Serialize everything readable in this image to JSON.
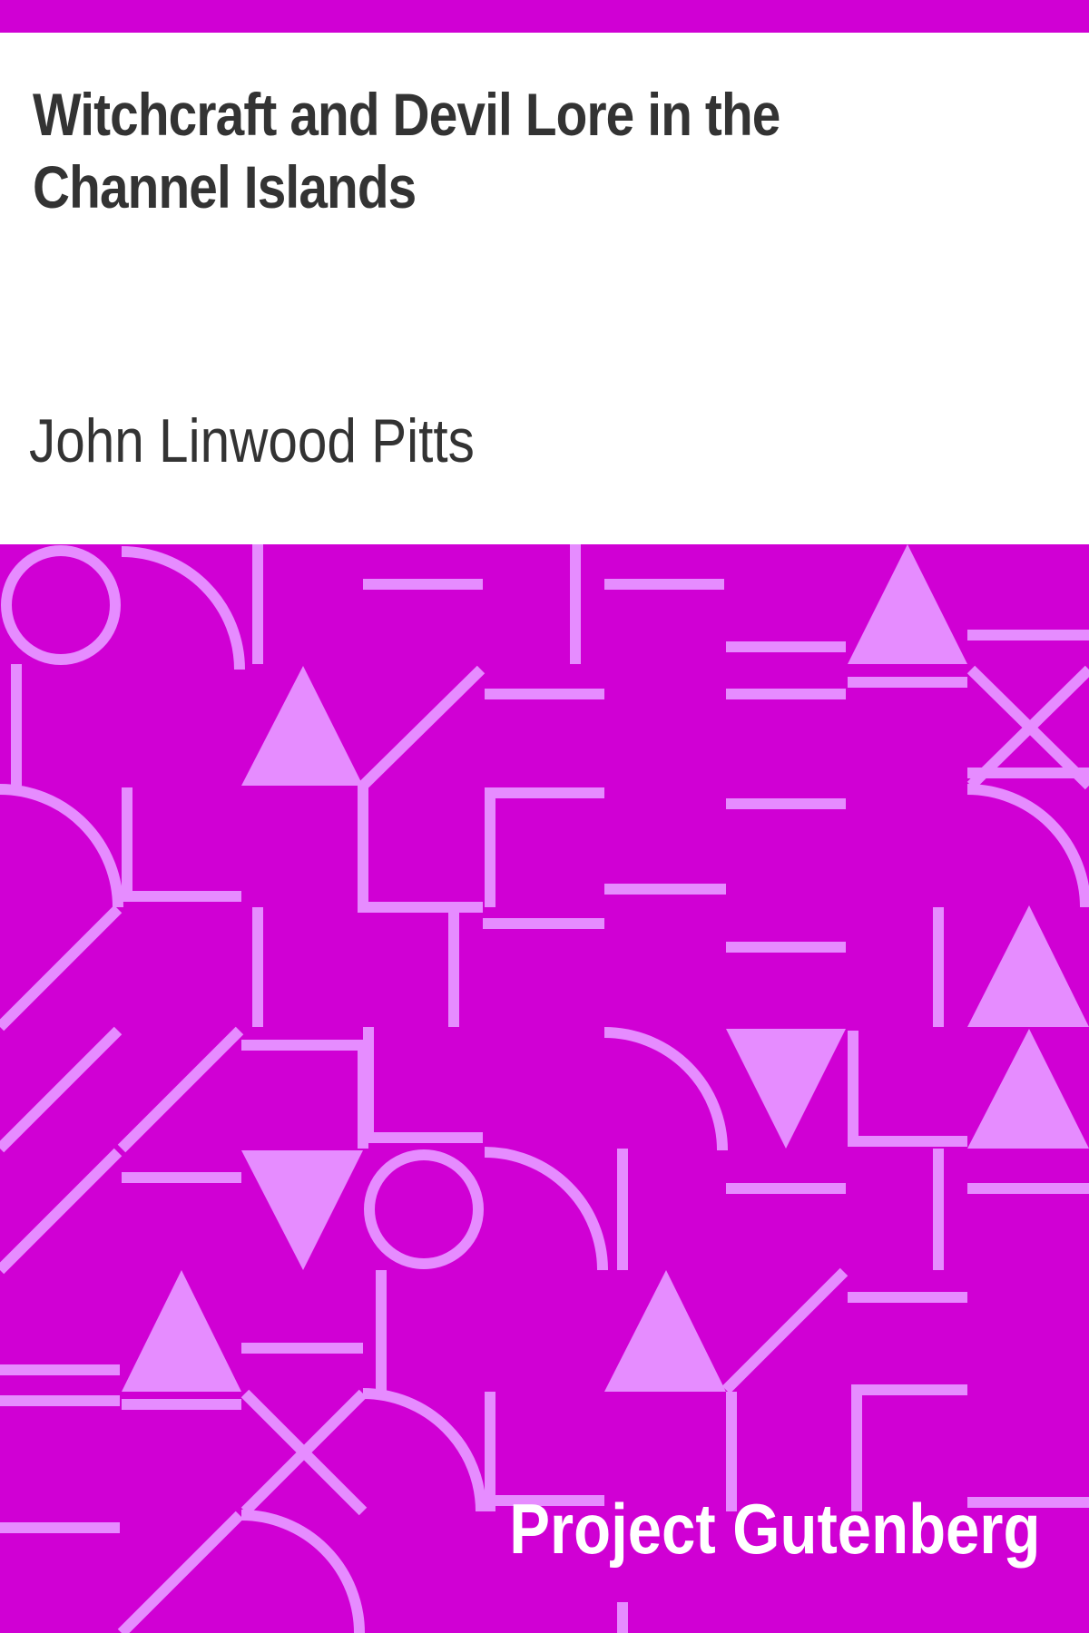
{
  "colors": {
    "accent": "#d000d4",
    "pattern_light": "#e68cff",
    "text": "#333333",
    "brand_text": "#ffffff"
  },
  "cover": {
    "title": "Witchcraft and Devil Lore in the Channel Islands",
    "author": "John Linwood Pitts",
    "publisher": "Project Gutenberg"
  }
}
